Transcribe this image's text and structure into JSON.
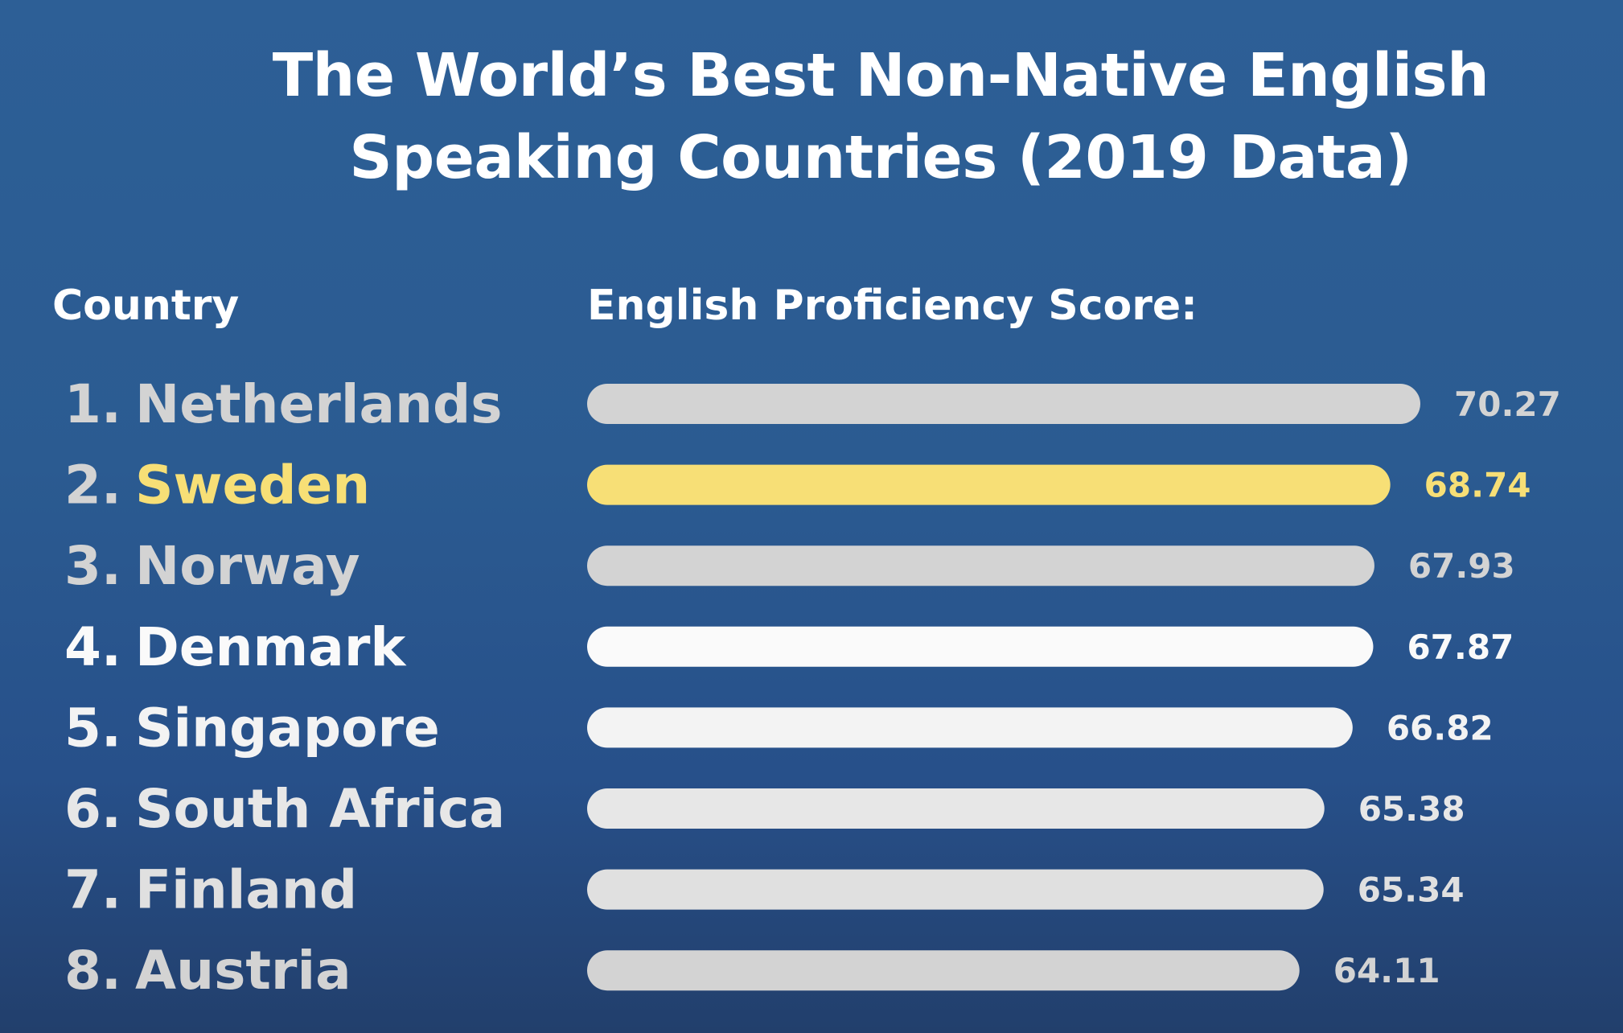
{
  "title_lines": [
    "The World’s Best Non-Native English",
    "Speaking Countries (2019 Data)"
  ],
  "headers": {
    "country": "Country",
    "score": "English Proficiency Score:"
  },
  "colors": {
    "background": "#2c5d93",
    "bar": "#ffffff",
    "highlight": "#f7df76"
  },
  "chart_data": {
    "type": "bar",
    "orientation": "horizontal",
    "title": "The World’s Best Non-Native English Speaking Countries (2019 Data)",
    "xlabel": "English Proficiency Score:",
    "ylabel": "Country",
    "xlim": [
      27.8,
      70.27
    ],
    "grid": false,
    "categories": [
      "Netherlands",
      "Sweden",
      "Norway",
      "Denmark",
      "Singapore",
      "South Africa",
      "Finland",
      "Austria"
    ],
    "ranks": [
      "1.",
      "2.",
      "3.",
      "4.",
      "5.",
      "6.",
      "7.",
      "8."
    ],
    "values": [
      70.27,
      68.74,
      67.93,
      67.87,
      66.82,
      65.38,
      65.34,
      64.11
    ],
    "value_labels": [
      "70.27",
      "68.74",
      "67.93",
      "67.87",
      "66.82",
      "65.38",
      "65.34",
      "64.11"
    ],
    "highlighted": "Sweden"
  }
}
